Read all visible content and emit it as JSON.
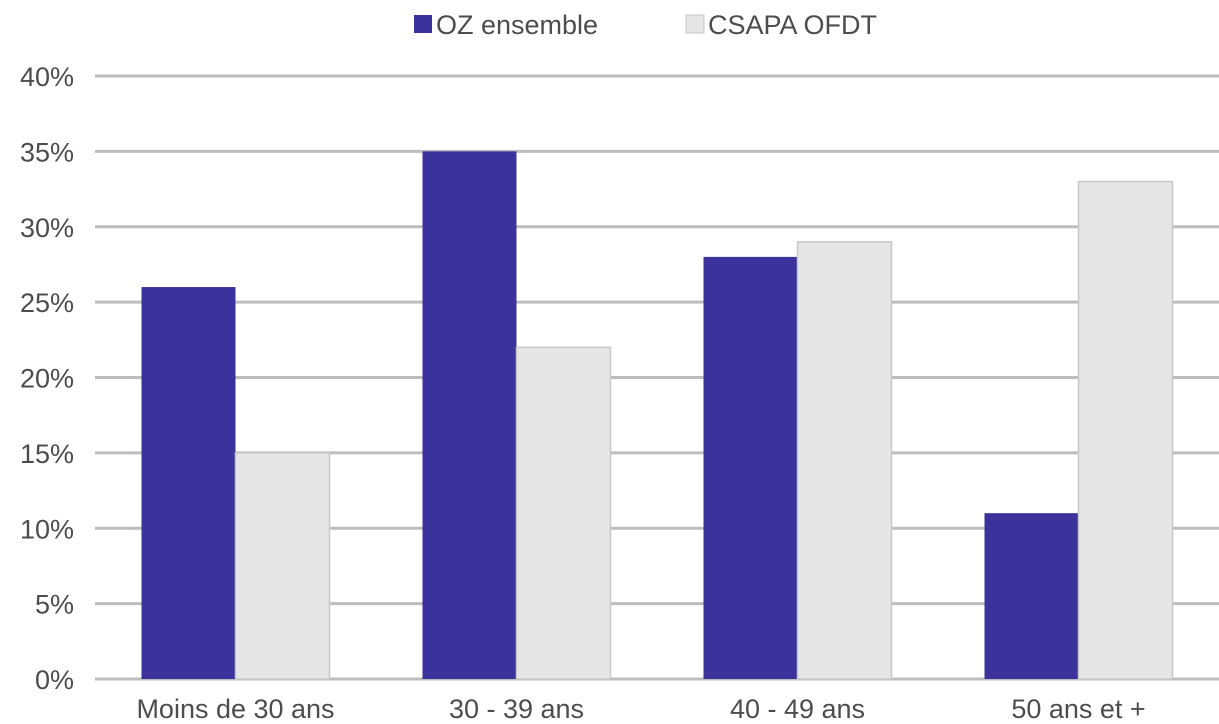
{
  "chart_data": {
    "type": "bar",
    "categories": [
      "Moins de 30 ans",
      "30 - 39 ans",
      "40 - 49 ans",
      "50 ans et +"
    ],
    "series": [
      {
        "name": "OZ ensemble",
        "values": [
          26,
          35,
          28,
          11
        ],
        "color": "#3b329c"
      },
      {
        "name": "CSAPA OFDT",
        "values": [
          15,
          22,
          29,
          33
        ],
        "color": "#e6e6e6",
        "stroke": "#c8c8c8"
      }
    ],
    "ylim": [
      0,
      40
    ],
    "yticks": [
      0,
      5,
      10,
      15,
      20,
      25,
      30,
      35,
      40
    ],
    "ytick_suffix": "%",
    "grid": true,
    "legend_position": "top-center"
  }
}
